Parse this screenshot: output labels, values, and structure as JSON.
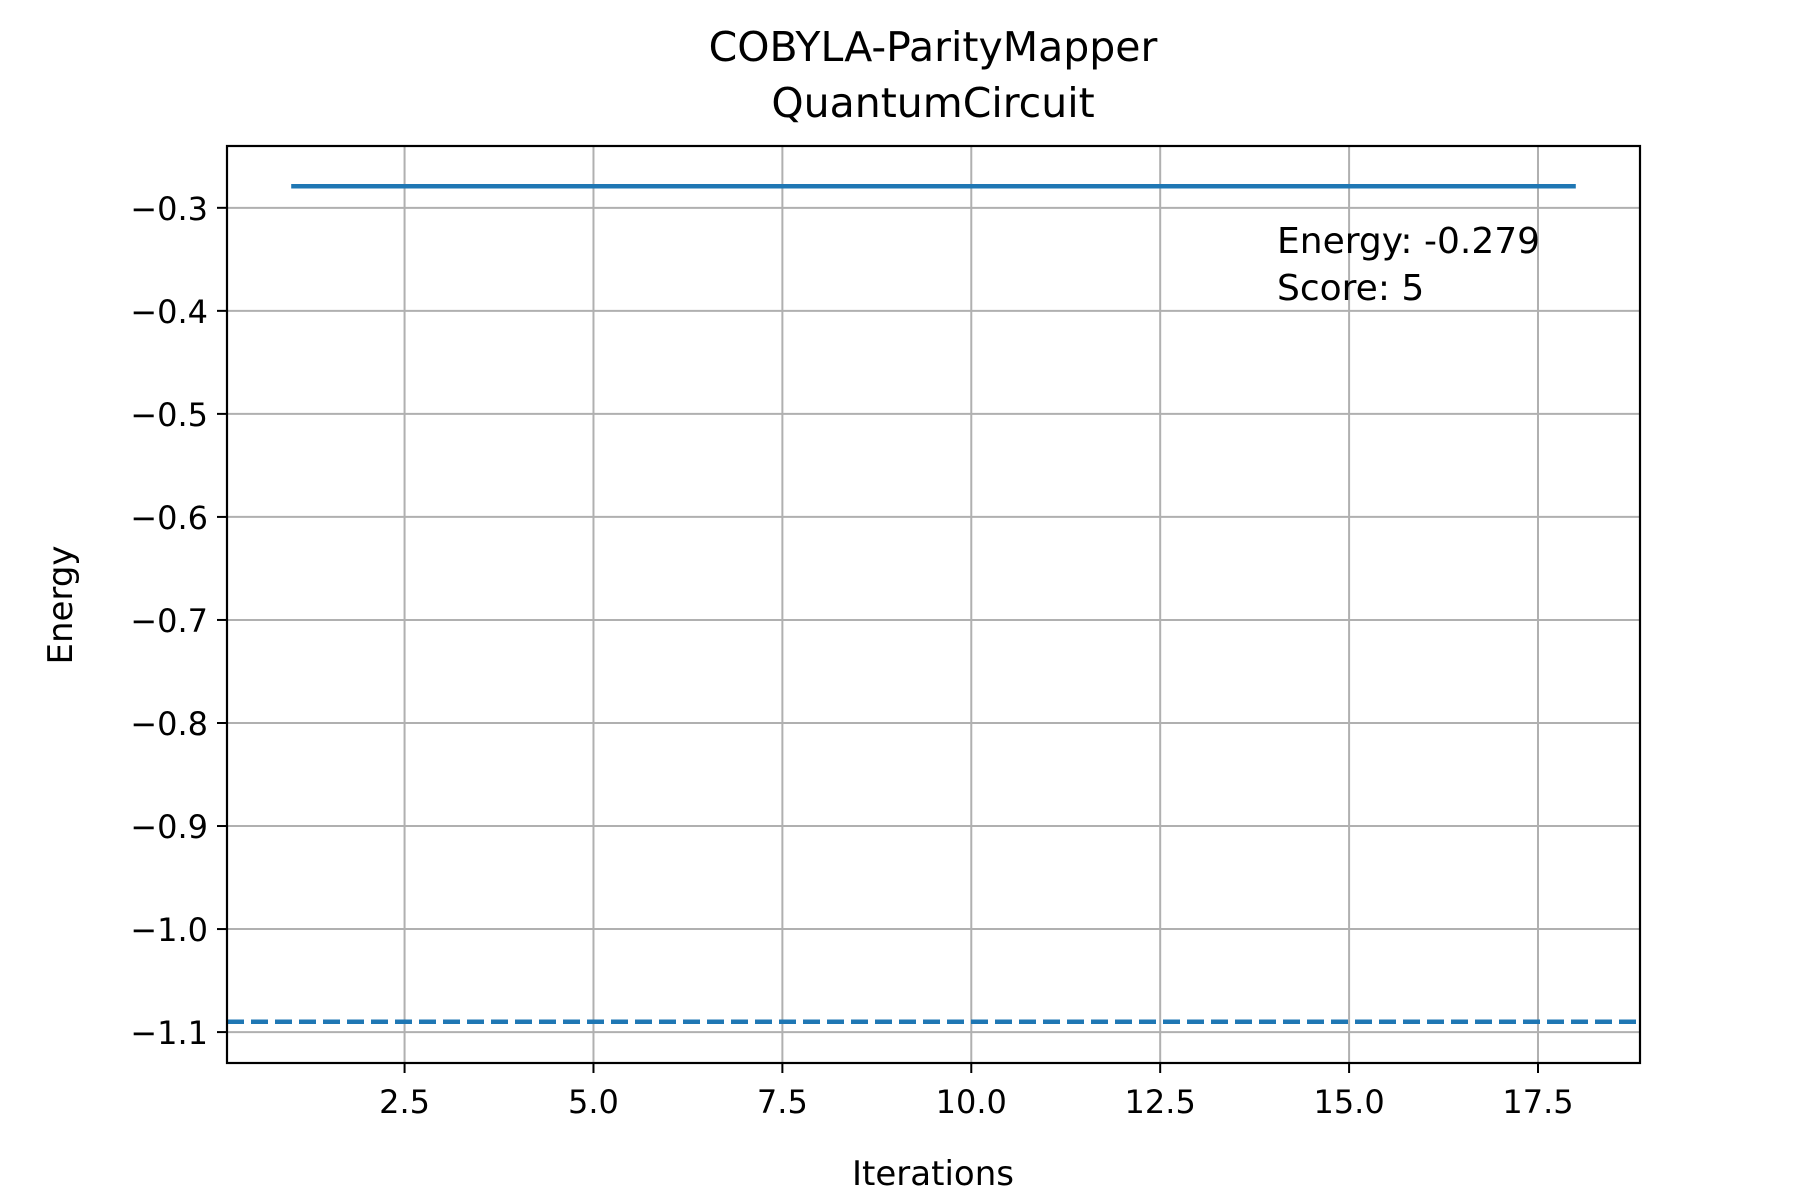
{
  "chart_data": {
    "type": "line",
    "title_lines": [
      "COBYLA-ParityMapper",
      "QuantumCircuit"
    ],
    "xlabel": "Iterations",
    "ylabel": "Energy",
    "xlim": [
      0.15,
      18.85
    ],
    "ylim": [
      -1.13,
      -0.24
    ],
    "x_ticks": [
      2.5,
      5.0,
      7.5,
      10.0,
      12.5,
      15.0,
      17.5
    ],
    "x_tick_labels": [
      "2.5",
      "5.0",
      "7.5",
      "10.0",
      "12.5",
      "15.0",
      "17.5"
    ],
    "y_ticks": [
      -0.3,
      -0.4,
      -0.5,
      -0.6,
      -0.7,
      -0.8,
      -0.9,
      -1.0,
      -1.1
    ],
    "y_tick_labels": [
      "−0.3",
      "−0.4",
      "−0.5",
      "−0.6",
      "−0.7",
      "−0.8",
      "−0.9",
      "−1.0",
      "−1.1"
    ],
    "grid": true,
    "series": [
      {
        "style": "solid",
        "color": "#1f77b4",
        "x": [
          1,
          2,
          3,
          4,
          5,
          6,
          7,
          8,
          9,
          10,
          11,
          12,
          13,
          14,
          15,
          16,
          17,
          18
        ],
        "y": [
          -0.279,
          -0.279,
          -0.279,
          -0.279,
          -0.279,
          -0.279,
          -0.279,
          -0.279,
          -0.279,
          -0.279,
          -0.279,
          -0.279,
          -0.279,
          -0.279,
          -0.279,
          -0.279,
          -0.279,
          -0.279
        ]
      }
    ],
    "reference_line": {
      "y": -1.09,
      "style": "dashed",
      "color": "#1f77b4"
    },
    "annotation_lines": [
      "Energy: -0.279",
      "Score: 5"
    ]
  }
}
